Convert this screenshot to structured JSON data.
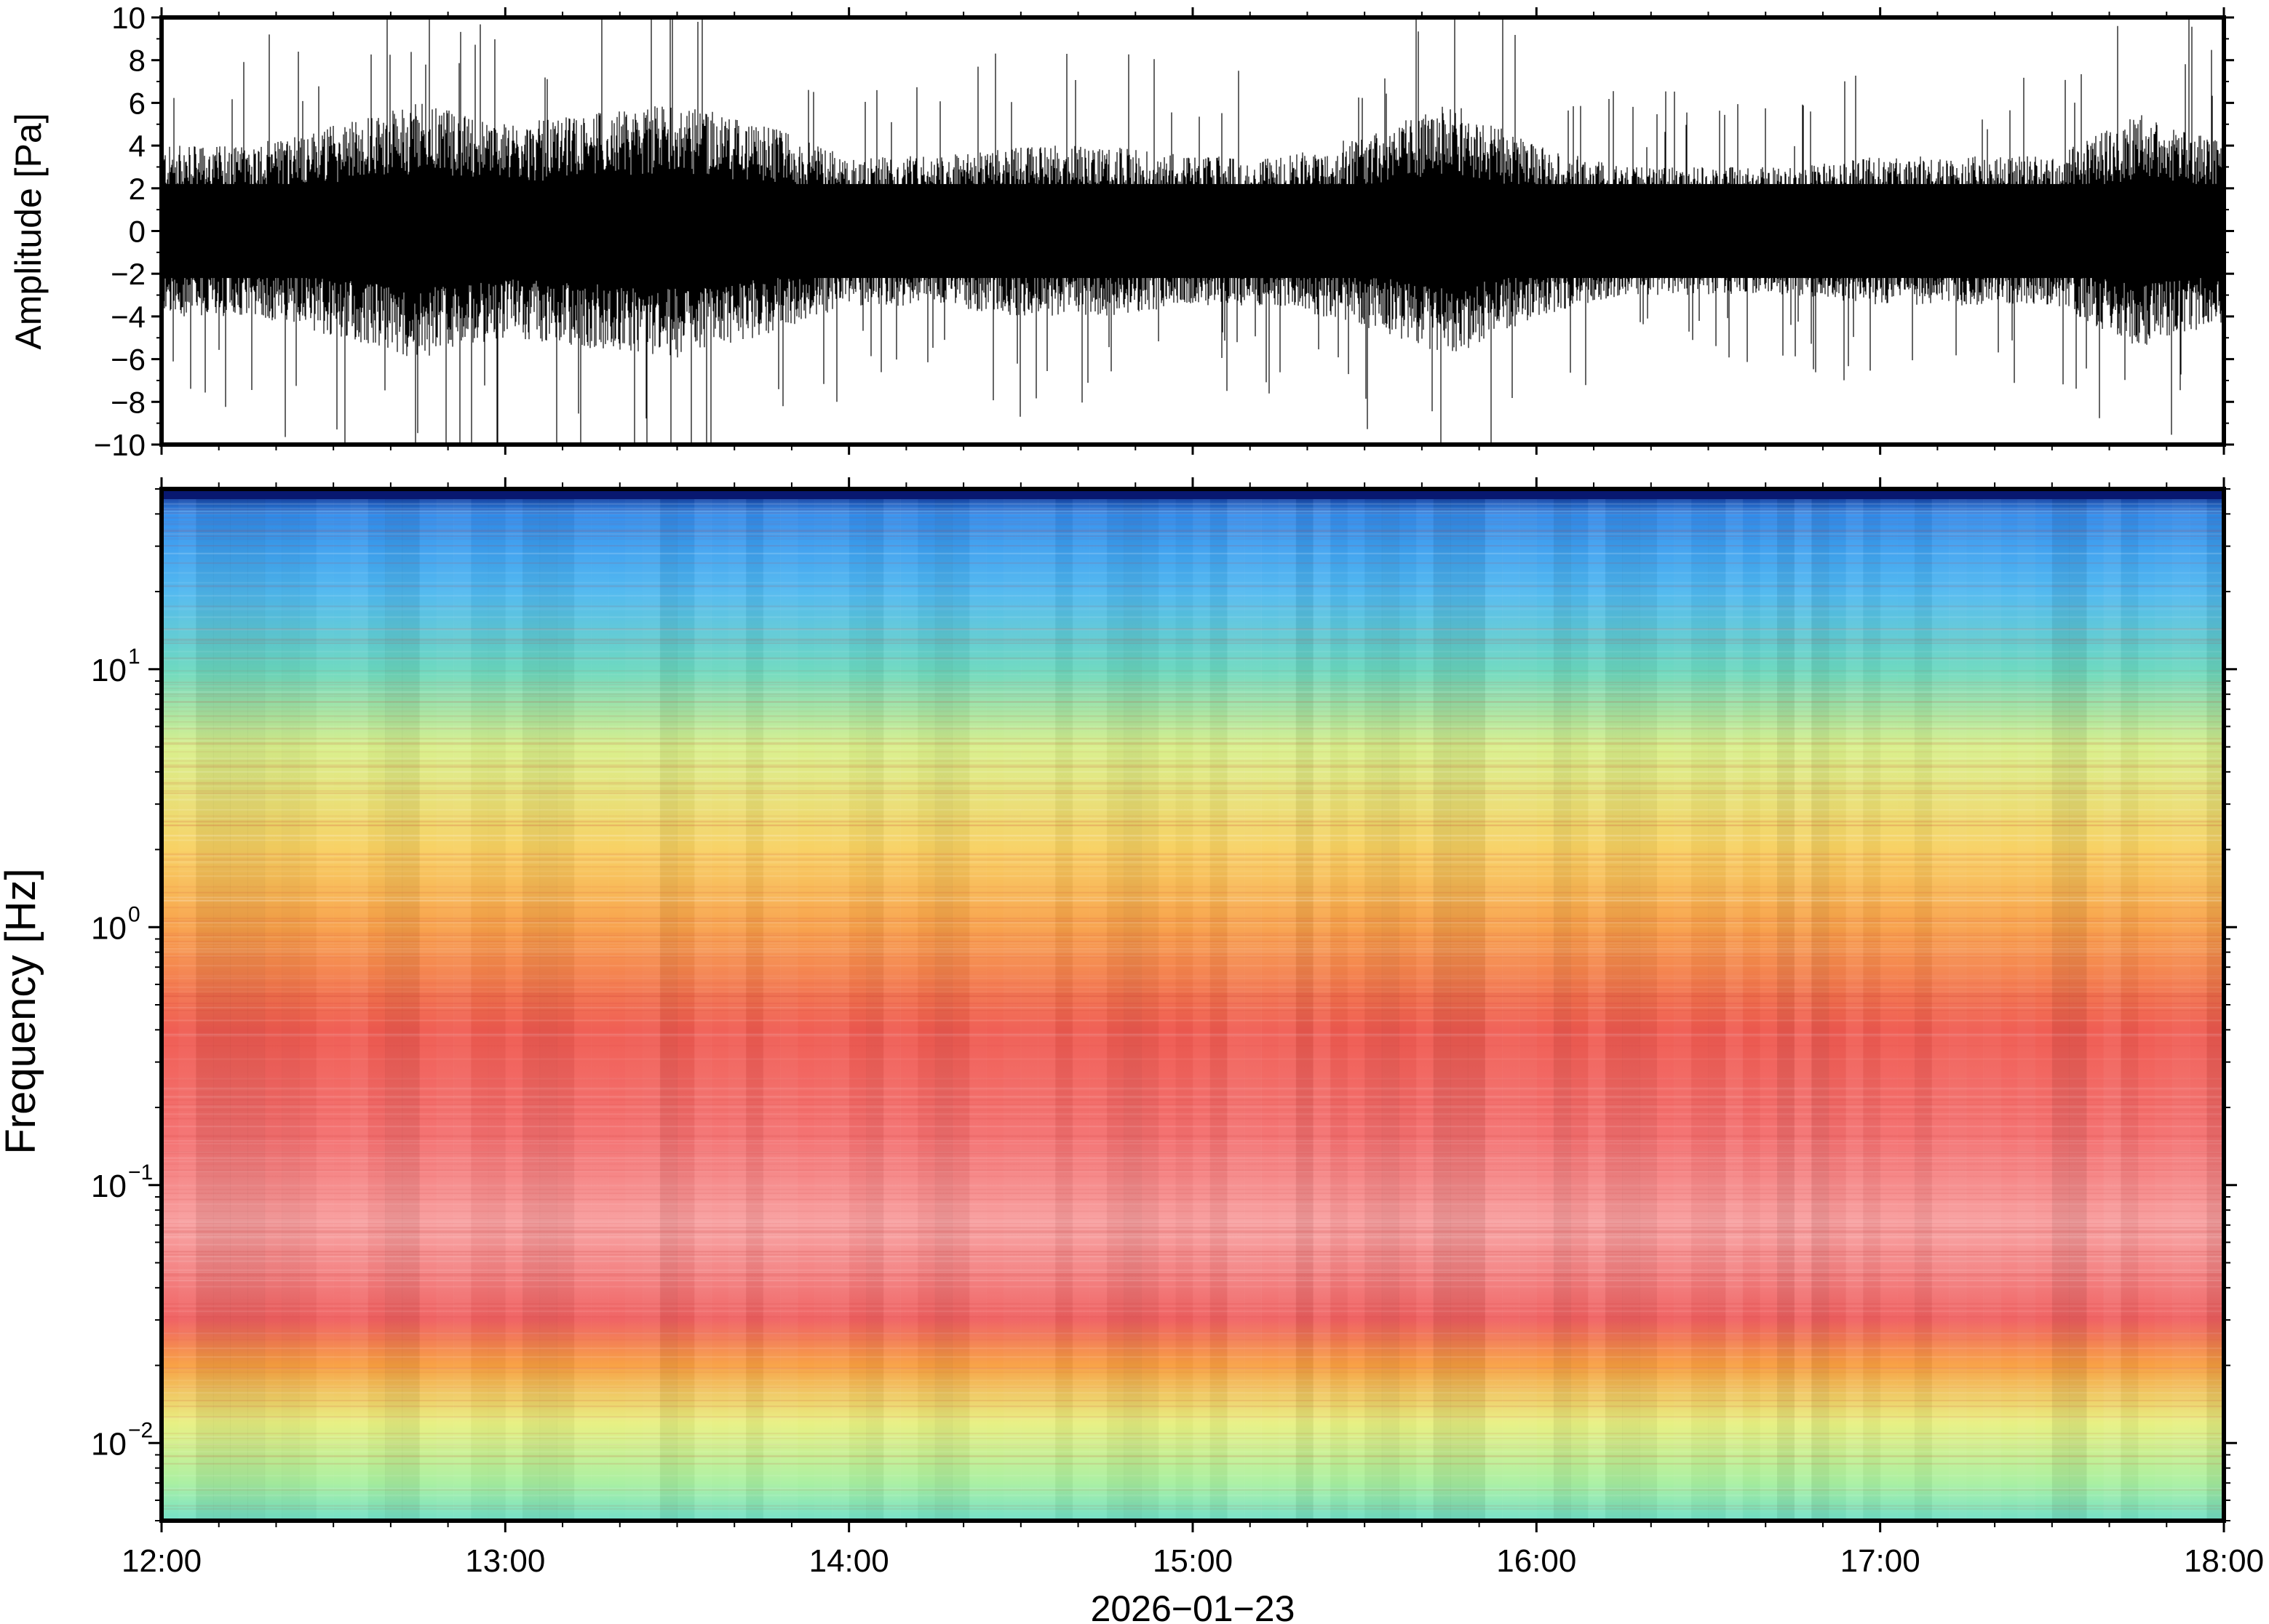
{
  "chart_data": [
    {
      "type": "line",
      "panel": "waveform",
      "ylabel": "Amplitude [Pa]",
      "ylim": [
        -10,
        10
      ],
      "yticks": [
        10,
        8,
        6,
        4,
        2,
        0,
        -2,
        -4,
        -6,
        -8,
        -10
      ],
      "ytick_labels": [
        "10",
        "8",
        "6",
        "4",
        "2",
        "0",
        "−2",
        "−4",
        "−6",
        "−8",
        "−10"
      ],
      "xlim": [
        "12:00",
        "18:00"
      ],
      "series": [
        {
          "x": [
            "12:00",
            "12:15",
            "12:30",
            "12:45",
            "13:00",
            "13:15",
            "13:30",
            "13:45",
            "14:00",
            "14:15",
            "14:30",
            "14:45",
            "15:00",
            "15:15",
            "15:30",
            "15:45",
            "16:00",
            "16:15",
            "16:30",
            "16:45",
            "17:00",
            "17:15",
            "17:30",
            "17:45",
            "18:00"
          ],
          "envelope_max": [
            4,
            4,
            5,
            6,
            5,
            5.5,
            6,
            5,
            3.5,
            3.5,
            4,
            4,
            3.5,
            3.5,
            4.5,
            6,
            4,
            3,
            3,
            3,
            3.5,
            3.5,
            3.5,
            5.5,
            4.5
          ],
          "envelope_min": [
            -4,
            -4,
            -5,
            -6,
            -5,
            -5.5,
            -6,
            -5,
            -3.5,
            -3.5,
            -4,
            -4,
            -3.5,
            -3.5,
            -4.5,
            -6,
            -4,
            -3,
            -3,
            -3,
            -3.5,
            -3.5,
            -3.5,
            -5.5,
            -4.5
          ],
          "peak_max": 10,
          "peak_min": -10
        }
      ]
    },
    {
      "type": "heatmap",
      "panel": "spectrogram",
      "ylabel": "Frequency [Hz]",
      "yscale": "log",
      "ylim": [
        0.005,
        50
      ],
      "yticks": [
        0.01,
        0.1,
        1,
        10
      ],
      "ytick_labels": [
        {
          "base": "10",
          "exp": "−2"
        },
        {
          "base": "10",
          "exp": "−1"
        },
        {
          "base": "10",
          "exp": "0"
        },
        {
          "base": "10",
          "exp": "1"
        }
      ],
      "xlim": [
        "12:00",
        "18:00"
      ],
      "xticks": [
        "12:00",
        "13:00",
        "14:00",
        "15:00",
        "16:00",
        "17:00",
        "18:00"
      ],
      "xlabel": "2026−01−23",
      "colormap": "spectral",
      "color_bands": [
        {
          "freq": 50,
          "color": "#0a1a7a"
        },
        {
          "freq": 40,
          "color": "#2f8ef0"
        },
        {
          "freq": 20,
          "color": "#4fb8f0"
        },
        {
          "freq": 10,
          "color": "#6ad8c0"
        },
        {
          "freq": 5,
          "color": "#d8f08a"
        },
        {
          "freq": 2,
          "color": "#f8d060"
        },
        {
          "freq": 1,
          "color": "#f8a048"
        },
        {
          "freq": 0.4,
          "color": "#f05a50"
        },
        {
          "freq": 0.15,
          "color": "#f47070"
        },
        {
          "freq": 0.07,
          "color": "#f8a0a0"
        },
        {
          "freq": 0.03,
          "color": "#f06060"
        },
        {
          "freq": 0.02,
          "color": "#f8a040"
        },
        {
          "freq": 0.012,
          "color": "#e8f080"
        },
        {
          "freq": 0.007,
          "color": "#a8f0a0"
        },
        {
          "freq": 0.005,
          "color": "#70e0c8"
        }
      ]
    }
  ]
}
